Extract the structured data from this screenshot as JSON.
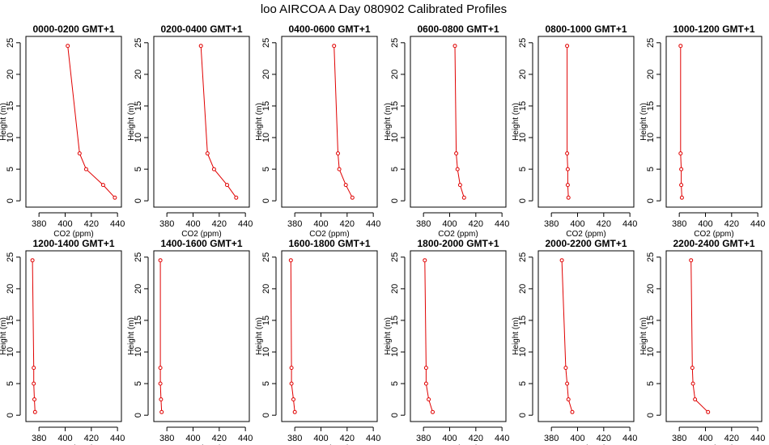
{
  "figure_title": "loo AIRCOA A  Day 080902  Calibrated Profiles",
  "chart_data": [
    {
      "type": "line",
      "title": "0000-0200 GMT+1",
      "xlabel": "CO2 (ppm)",
      "ylabel": "Height (m)",
      "xlim": [
        370,
        443
      ],
      "ylim": [
        -1,
        26
      ],
      "xticks": [
        380,
        400,
        420,
        440
      ],
      "yticks": [
        0,
        5,
        10,
        15,
        20,
        25
      ],
      "x": [
        438,
        429,
        416,
        411,
        402
      ],
      "y": [
        0.5,
        2.5,
        5,
        7.5,
        24.5
      ]
    },
    {
      "type": "line",
      "title": "0200-0400 GMT+1",
      "xlabel": "CO2 (ppm)",
      "ylabel": "Height (m)",
      "xlim": [
        370,
        443
      ],
      "ylim": [
        -1,
        26
      ],
      "xticks": [
        380,
        400,
        420,
        440
      ],
      "yticks": [
        0,
        5,
        10,
        15,
        20,
        25
      ],
      "x": [
        433,
        426,
        416,
        411,
        406
      ],
      "y": [
        0.5,
        2.5,
        5,
        7.5,
        24.5
      ]
    },
    {
      "type": "line",
      "title": "0400-0600 GMT+1",
      "xlabel": "CO2 (ppm)",
      "ylabel": "Height (m)",
      "xlim": [
        370,
        443
      ],
      "ylim": [
        -1,
        26
      ],
      "xticks": [
        380,
        400,
        420,
        440
      ],
      "yticks": [
        0,
        5,
        10,
        15,
        20,
        25
      ],
      "x": [
        424,
        419,
        414,
        413,
        410
      ],
      "y": [
        0.5,
        2.5,
        5,
        7.5,
        24.5
      ]
    },
    {
      "type": "line",
      "title": "0600-0800 GMT+1",
      "xlabel": "CO2 (ppm)",
      "ylabel": "Height (m)",
      "xlim": [
        370,
        443
      ],
      "ylim": [
        -1,
        26
      ],
      "xticks": [
        380,
        400,
        420,
        440
      ],
      "yticks": [
        0,
        5,
        10,
        15,
        20,
        25
      ],
      "x": [
        411,
        408,
        406,
        405,
        404
      ],
      "y": [
        0.5,
        2.5,
        5,
        7.5,
        24.5
      ]
    },
    {
      "type": "line",
      "title": "0800-1000 GMT+1",
      "xlabel": "CO2 (ppm)",
      "ylabel": "Height (m)",
      "xlim": [
        370,
        443
      ],
      "ylim": [
        -1,
        26
      ],
      "xticks": [
        380,
        400,
        420,
        440
      ],
      "yticks": [
        0,
        5,
        10,
        15,
        20,
        25
      ],
      "x": [
        393,
        392.5,
        392.5,
        392,
        392
      ],
      "y": [
        0.5,
        2.5,
        5,
        7.5,
        24.5
      ]
    },
    {
      "type": "line",
      "title": "1000-1200 GMT+1",
      "xlabel": "CO2 (ppm)",
      "ylabel": "Height (m)",
      "xlim": [
        370,
        443
      ],
      "ylim": [
        -1,
        26
      ],
      "xticks": [
        380,
        400,
        420,
        440
      ],
      "yticks": [
        0,
        5,
        10,
        15,
        20,
        25
      ],
      "x": [
        382,
        381.5,
        381.5,
        381,
        381
      ],
      "y": [
        0.5,
        2.5,
        5,
        7.5,
        24.5
      ]
    },
    {
      "type": "line",
      "title": "1200-1400 GMT+1",
      "xlabel": "CO2 (ppm)",
      "ylabel": "Height (m)",
      "xlim": [
        370,
        443
      ],
      "ylim": [
        -1,
        26
      ],
      "xticks": [
        380,
        400,
        420,
        440
      ],
      "yticks": [
        0,
        5,
        10,
        15,
        20,
        25
      ],
      "x": [
        377,
        376.5,
        376,
        376,
        375
      ],
      "y": [
        0.5,
        2.5,
        5,
        7.5,
        24.5
      ]
    },
    {
      "type": "line",
      "title": "1400-1600 GMT+1",
      "xlabel": "CO2 (ppm)",
      "ylabel": "Height (m)",
      "xlim": [
        370,
        443
      ],
      "ylim": [
        -1,
        26
      ],
      "xticks": [
        380,
        400,
        420,
        440
      ],
      "yticks": [
        0,
        5,
        10,
        15,
        20,
        25
      ],
      "x": [
        376,
        375.5,
        375,
        375,
        375
      ],
      "y": [
        0.5,
        2.5,
        5,
        7.5,
        24.5
      ]
    },
    {
      "type": "line",
      "title": "1600-1800 GMT+1",
      "xlabel": "CO2 (ppm)",
      "ylabel": "Height (m)",
      "xlim": [
        370,
        443
      ],
      "ylim": [
        -1,
        26
      ],
      "xticks": [
        380,
        400,
        420,
        440
      ],
      "yticks": [
        0,
        5,
        10,
        15,
        20,
        25
      ],
      "x": [
        380,
        379,
        377.5,
        377.5,
        377
      ],
      "y": [
        0.5,
        2.5,
        5,
        7.5,
        24.5
      ]
    },
    {
      "type": "line",
      "title": "1800-2000 GMT+1",
      "xlabel": "CO2 (ppm)",
      "ylabel": "Height (m)",
      "xlim": [
        370,
        443
      ],
      "ylim": [
        -1,
        26
      ],
      "xticks": [
        380,
        400,
        420,
        440
      ],
      "yticks": [
        0,
        5,
        10,
        15,
        20,
        25
      ],
      "x": [
        387,
        384,
        382,
        382,
        381
      ],
      "y": [
        0.5,
        2.5,
        5,
        7.5,
        24.5
      ]
    },
    {
      "type": "line",
      "title": "2000-2200 GMT+1",
      "xlabel": "CO2 (ppm)",
      "ylabel": "Height (m)",
      "xlim": [
        370,
        443
      ],
      "ylim": [
        -1,
        26
      ],
      "xticks": [
        380,
        400,
        420,
        440
      ],
      "yticks": [
        0,
        5,
        10,
        15,
        20,
        25
      ],
      "x": [
        396,
        393,
        392,
        391,
        388
      ],
      "y": [
        0.5,
        2.5,
        5,
        7.5,
        24.5
      ]
    },
    {
      "type": "line",
      "title": "2200-2400 GMT+1",
      "xlabel": "CO2 (ppm)",
      "ylabel": "Height (m)",
      "xlim": [
        370,
        443
      ],
      "ylim": [
        -1,
        26
      ],
      "xticks": [
        380,
        400,
        420,
        440
      ],
      "yticks": [
        0,
        5,
        10,
        15,
        20,
        25
      ],
      "x": [
        402,
        392,
        390.5,
        390,
        389
      ],
      "y": [
        0.5,
        2.5,
        5,
        7.5,
        24.5
      ]
    }
  ],
  "colors": {
    "series": "#e00000",
    "frame": "#000000",
    "background": "#ffffff"
  }
}
